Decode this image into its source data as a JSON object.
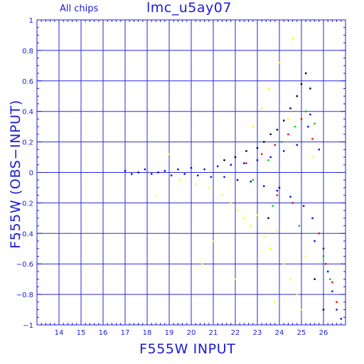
{
  "header": {
    "subset_label": "All chips",
    "title": "lmc_u5ay07"
  },
  "chart_data": {
    "type": "scatter",
    "title": "lmc_u5ay07",
    "subtitle": "All chips",
    "xlabel": "F555W INPUT",
    "ylabel": "F555W (OBS−INPUT)",
    "xlim": [
      13,
      27
    ],
    "ylim": [
      -1,
      1
    ],
    "x_ticks": [
      14,
      15,
      16,
      17,
      18,
      19,
      20,
      21,
      22,
      23,
      24,
      25,
      26
    ],
    "y_ticks": [
      -1,
      -0.8,
      -0.6,
      -0.4,
      -0.2,
      0,
      0.2,
      0.4,
      0.6,
      0.8,
      1
    ],
    "y_tick_labels": [
      "−1",
      "−0.8",
      "−0.6",
      "−0.4",
      "−0.2",
      "0",
      "0.2",
      "0.4",
      "0.6",
      "0.8",
      "1"
    ],
    "grid": true,
    "series_colors": [
      "#0000ff",
      "#ffff00",
      "#000000",
      "#ff0000",
      "#00c800"
    ],
    "series": [
      {
        "color": "#0000ff",
        "points": [
          [
            17.0,
            0.01
          ],
          [
            17.3,
            -0.01
          ],
          [
            17.6,
            0.0
          ],
          [
            17.9,
            0.02
          ],
          [
            18.2,
            -0.01
          ],
          [
            18.5,
            0.0
          ],
          [
            18.8,
            0.01
          ],
          [
            19.1,
            -0.02
          ],
          [
            19.4,
            0.02
          ],
          [
            19.7,
            -0.01
          ],
          [
            20.0,
            0.03
          ],
          [
            20.3,
            -0.02
          ],
          [
            20.6,
            0.02
          ],
          [
            20.9,
            -0.03
          ],
          [
            21.2,
            0.04
          ],
          [
            21.5,
            -0.03
          ],
          [
            21.8,
            0.05
          ],
          [
            22.1,
            -0.05
          ],
          [
            22.4,
            0.06
          ],
          [
            22.7,
            -0.06
          ],
          [
            23.0,
            0.08
          ],
          [
            23.3,
            -0.09
          ],
          [
            23.6,
            0.1
          ],
          [
            23.9,
            -0.12
          ],
          [
            24.2,
            0.14
          ],
          [
            24.5,
            -0.16
          ],
          [
            24.8,
            0.18
          ],
          [
            25.1,
            -0.22
          ],
          [
            25.3,
            0.3
          ],
          [
            25.4,
            0.38
          ],
          [
            25.5,
            -0.3
          ],
          [
            25.6,
            -0.45
          ],
          [
            25.8,
            0.15
          ],
          [
            26.0,
            -0.5
          ],
          [
            26.2,
            -0.65
          ],
          [
            26.4,
            -0.78
          ],
          [
            26.6,
            -0.9
          ],
          [
            26.8,
            -0.96
          ]
        ]
      },
      {
        "color": "#ffff00",
        "points": [
          [
            19.5,
            -0.05
          ],
          [
            20.2,
            -0.08
          ],
          [
            20.8,
            -0.1
          ],
          [
            21.4,
            -0.15
          ],
          [
            21.8,
            -0.2
          ],
          [
            22.1,
            -0.25
          ],
          [
            22.4,
            -0.3
          ],
          [
            22.7,
            -0.35
          ],
          [
            23.0,
            -0.28
          ],
          [
            23.3,
            -0.42
          ],
          [
            23.6,
            -0.5
          ],
          [
            23.9,
            -0.38
          ],
          [
            24.2,
            -0.6
          ],
          [
            24.5,
            -0.7
          ],
          [
            24.8,
            -0.8
          ],
          [
            25.0,
            -0.9
          ],
          [
            23.5,
            0.55
          ],
          [
            24.0,
            0.72
          ],
          [
            24.6,
            0.88
          ],
          [
            22.8,
            0.3
          ],
          [
            23.2,
            0.42
          ],
          [
            25.2,
            -0.55
          ],
          [
            21.0,
            -0.45
          ],
          [
            20.5,
            -0.6
          ],
          [
            22.0,
            -0.7
          ],
          [
            23.8,
            -0.85
          ],
          [
            24.4,
            0.35
          ],
          [
            25.5,
            0.1
          ],
          [
            19.0,
            0.12
          ],
          [
            18.4,
            -0.15
          ]
        ]
      },
      {
        "color": "#000000",
        "points": [
          [
            21.5,
            0.08
          ],
          [
            22.0,
            0.1
          ],
          [
            22.5,
            0.14
          ],
          [
            23.0,
            0.16
          ],
          [
            23.3,
            0.2
          ],
          [
            23.6,
            0.25
          ],
          [
            23.9,
            0.28
          ],
          [
            24.2,
            0.34
          ],
          [
            24.5,
            0.42
          ],
          [
            24.8,
            0.5
          ],
          [
            25.0,
            0.58
          ],
          [
            25.2,
            0.65
          ],
          [
            25.4,
            0.55
          ],
          [
            24.0,
            -0.1
          ],
          [
            23.5,
            -0.3
          ],
          [
            25.6,
            -0.7
          ],
          [
            26.0,
            -0.9
          ]
        ]
      },
      {
        "color": "#ff0000",
        "points": [
          [
            22.5,
            0.06
          ],
          [
            23.2,
            0.12
          ],
          [
            23.8,
            0.18
          ],
          [
            24.4,
            0.25
          ],
          [
            25.0,
            0.35
          ],
          [
            25.5,
            0.22
          ],
          [
            25.8,
            -0.4
          ],
          [
            26.1,
            -0.6
          ],
          [
            26.4,
            -0.72
          ],
          [
            26.6,
            -0.85
          ],
          [
            24.6,
            -0.2
          ],
          [
            23.9,
            -0.15
          ]
        ]
      },
      {
        "color": "#00c800",
        "points": [
          [
            22.8,
            -0.05
          ],
          [
            23.5,
            0.08
          ],
          [
            24.1,
            0.2
          ],
          [
            24.7,
            0.3
          ],
          [
            25.2,
            0.4
          ],
          [
            25.6,
            0.32
          ],
          [
            26.0,
            -0.55
          ],
          [
            26.3,
            -0.7
          ],
          [
            24.9,
            -0.35
          ],
          [
            23.7,
            -0.22
          ]
        ]
      }
    ]
  }
}
